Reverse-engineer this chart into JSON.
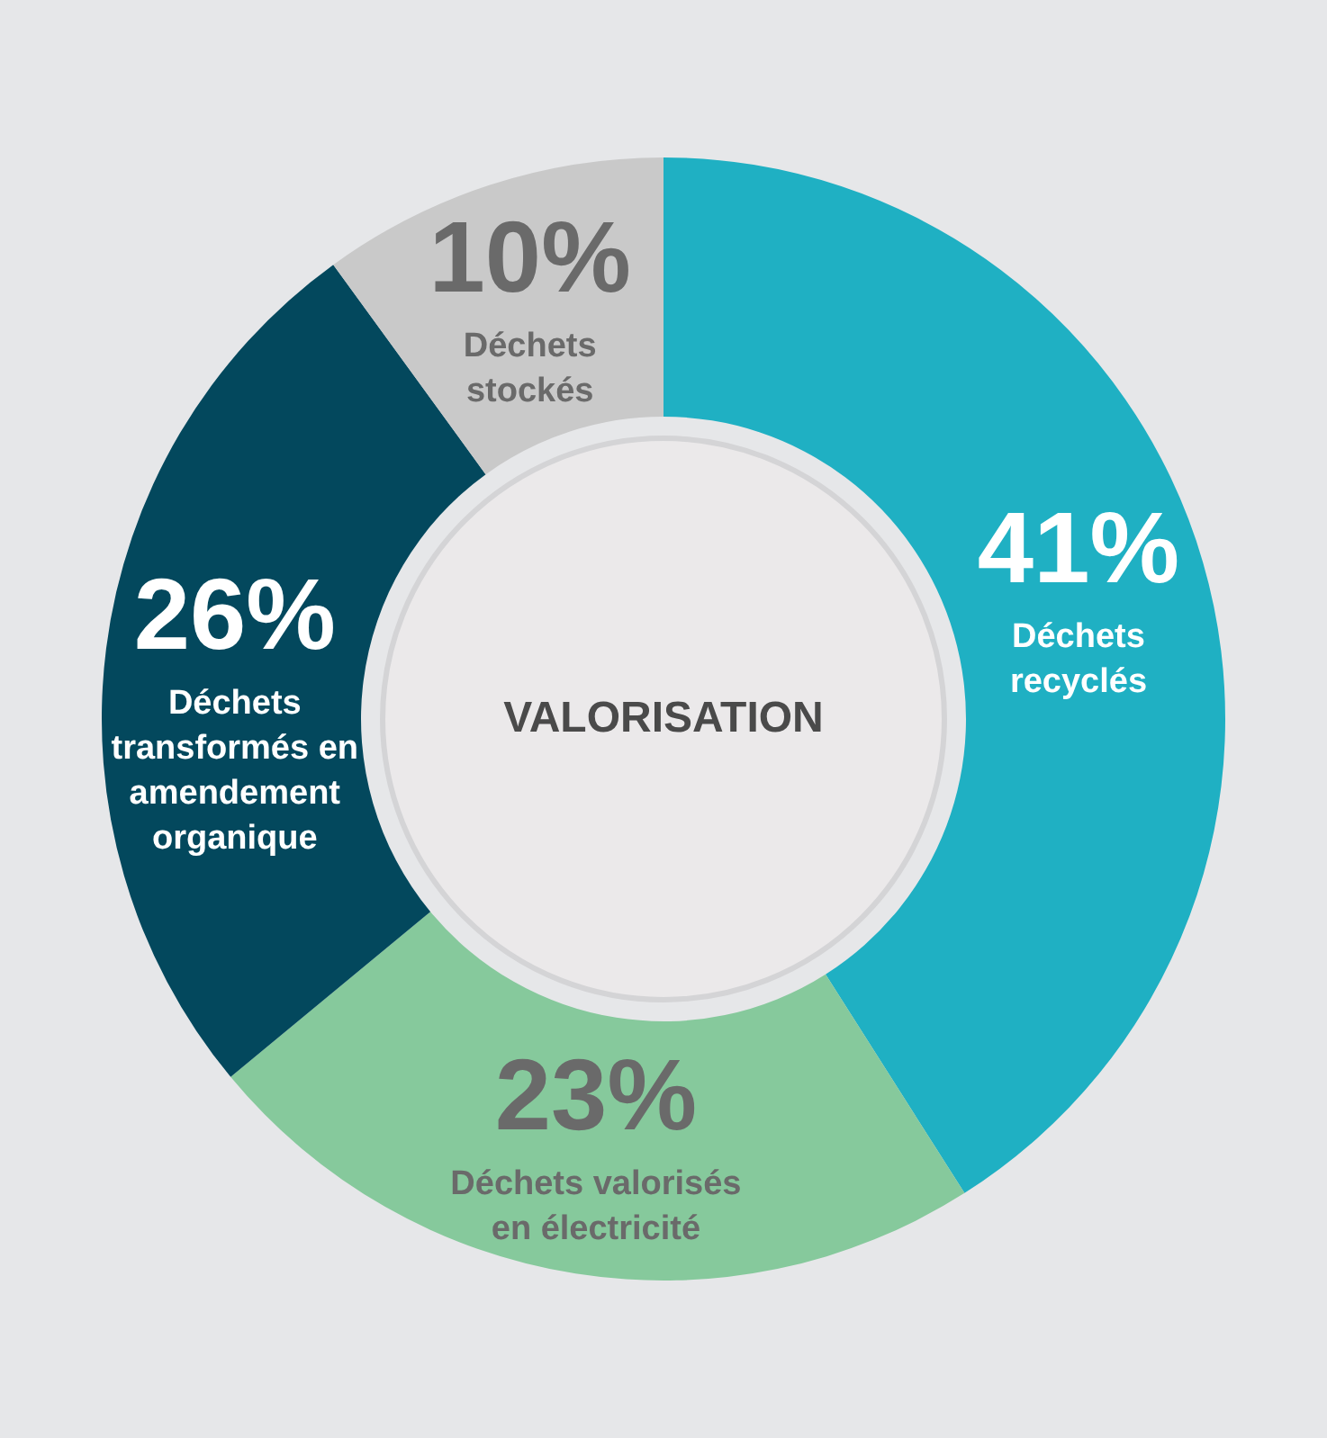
{
  "chart_data": {
    "type": "donut",
    "title": "VALORISATION",
    "categories": [
      "Déchets\nrecyclés",
      "Déchets valorisés\nen électricité",
      "Déchets\ntransformés en\namendement\norganique",
      "Déchets\nstockés"
    ],
    "values": [
      41,
      23,
      26,
      10
    ],
    "value_labels": [
      "41%",
      "23%",
      "26%",
      "10%"
    ],
    "colors": [
      "#1fb0c3",
      "#86c99c",
      "#03485d",
      "#c9c9c9"
    ],
    "legend": false
  }
}
